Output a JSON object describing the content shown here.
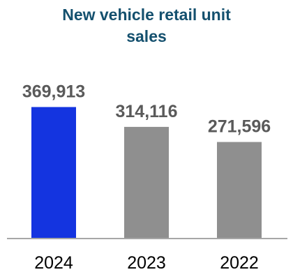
{
  "chart_data": {
    "type": "bar",
    "title_lines": [
      "New vehicle retail unit",
      "sales"
    ],
    "categories": [
      "2024",
      "2023",
      "2022"
    ],
    "values": [
      369913,
      314116,
      271596
    ],
    "value_labels": [
      "369,913",
      "314,116",
      "271,596"
    ],
    "ylim": [
      0,
      465000
    ],
    "grid": false,
    "colors": {
      "highlight": "#1434e0",
      "bar": "#8f8f8f",
      "axis": "#a6a6a6",
      "title": "#14506e",
      "value_label": "#5a5a5a"
    }
  }
}
